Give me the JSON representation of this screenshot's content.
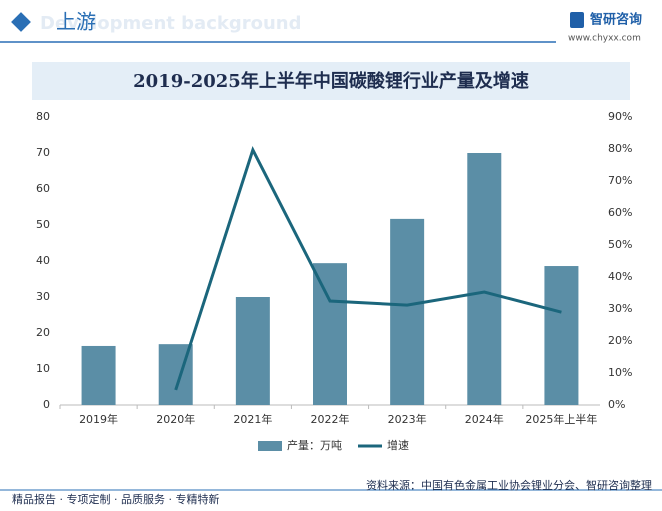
{
  "header": {
    "section": "上游",
    "watermark": "Development background",
    "brand": "智研咨询",
    "site": "www.chyxx.com"
  },
  "chart_data": {
    "type": "bar",
    "title": "2019-2025年上半年中国碳酸锂行业产量及增速",
    "categories": [
      "2019年",
      "2020年",
      "2021年",
      "2022年",
      "2023年",
      "2024年",
      "2025年上半年"
    ],
    "series": [
      {
        "name": "产量：万吨",
        "type": "bar",
        "color": "#5b8ea6",
        "values": [
          16.4,
          16.9,
          30,
          39.4,
          51.7,
          70,
          38.6
        ]
      },
      {
        "name": "增速",
        "type": "line",
        "axis": "y2",
        "color": "#1b667c",
        "values": [
          null,
          4.7,
          79.7,
          32.5,
          31.2,
          35.3,
          29
        ]
      }
    ],
    "ylim": [
      0,
      80
    ],
    "yticks": [
      0,
      10,
      20,
      30,
      40,
      50,
      60,
      70,
      80
    ],
    "y2lim": [
      0,
      90
    ],
    "y2ticks": [
      {
        "value": 0,
        "label": "0%"
      },
      {
        "value": 10,
        "label": "10%"
      },
      {
        "value": 20,
        "label": "20%"
      },
      {
        "value": 30,
        "label": "30%"
      },
      {
        "value": 40,
        "label": "40%"
      },
      {
        "value": 50,
        "label": "50%"
      },
      {
        "value": 60,
        "label": "60%"
      },
      {
        "value": 70,
        "label": "70%"
      },
      {
        "value": 80,
        "label": "80%"
      },
      {
        "value": 90,
        "label": "90%"
      }
    ],
    "legend": "bottom"
  },
  "footer": {
    "tagline": "精品报告 · 专项定制 · 品质服务 · 专精特新",
    "source": "资料来源：中国有色金属工业协会锂业分会、智研咨询整理"
  }
}
